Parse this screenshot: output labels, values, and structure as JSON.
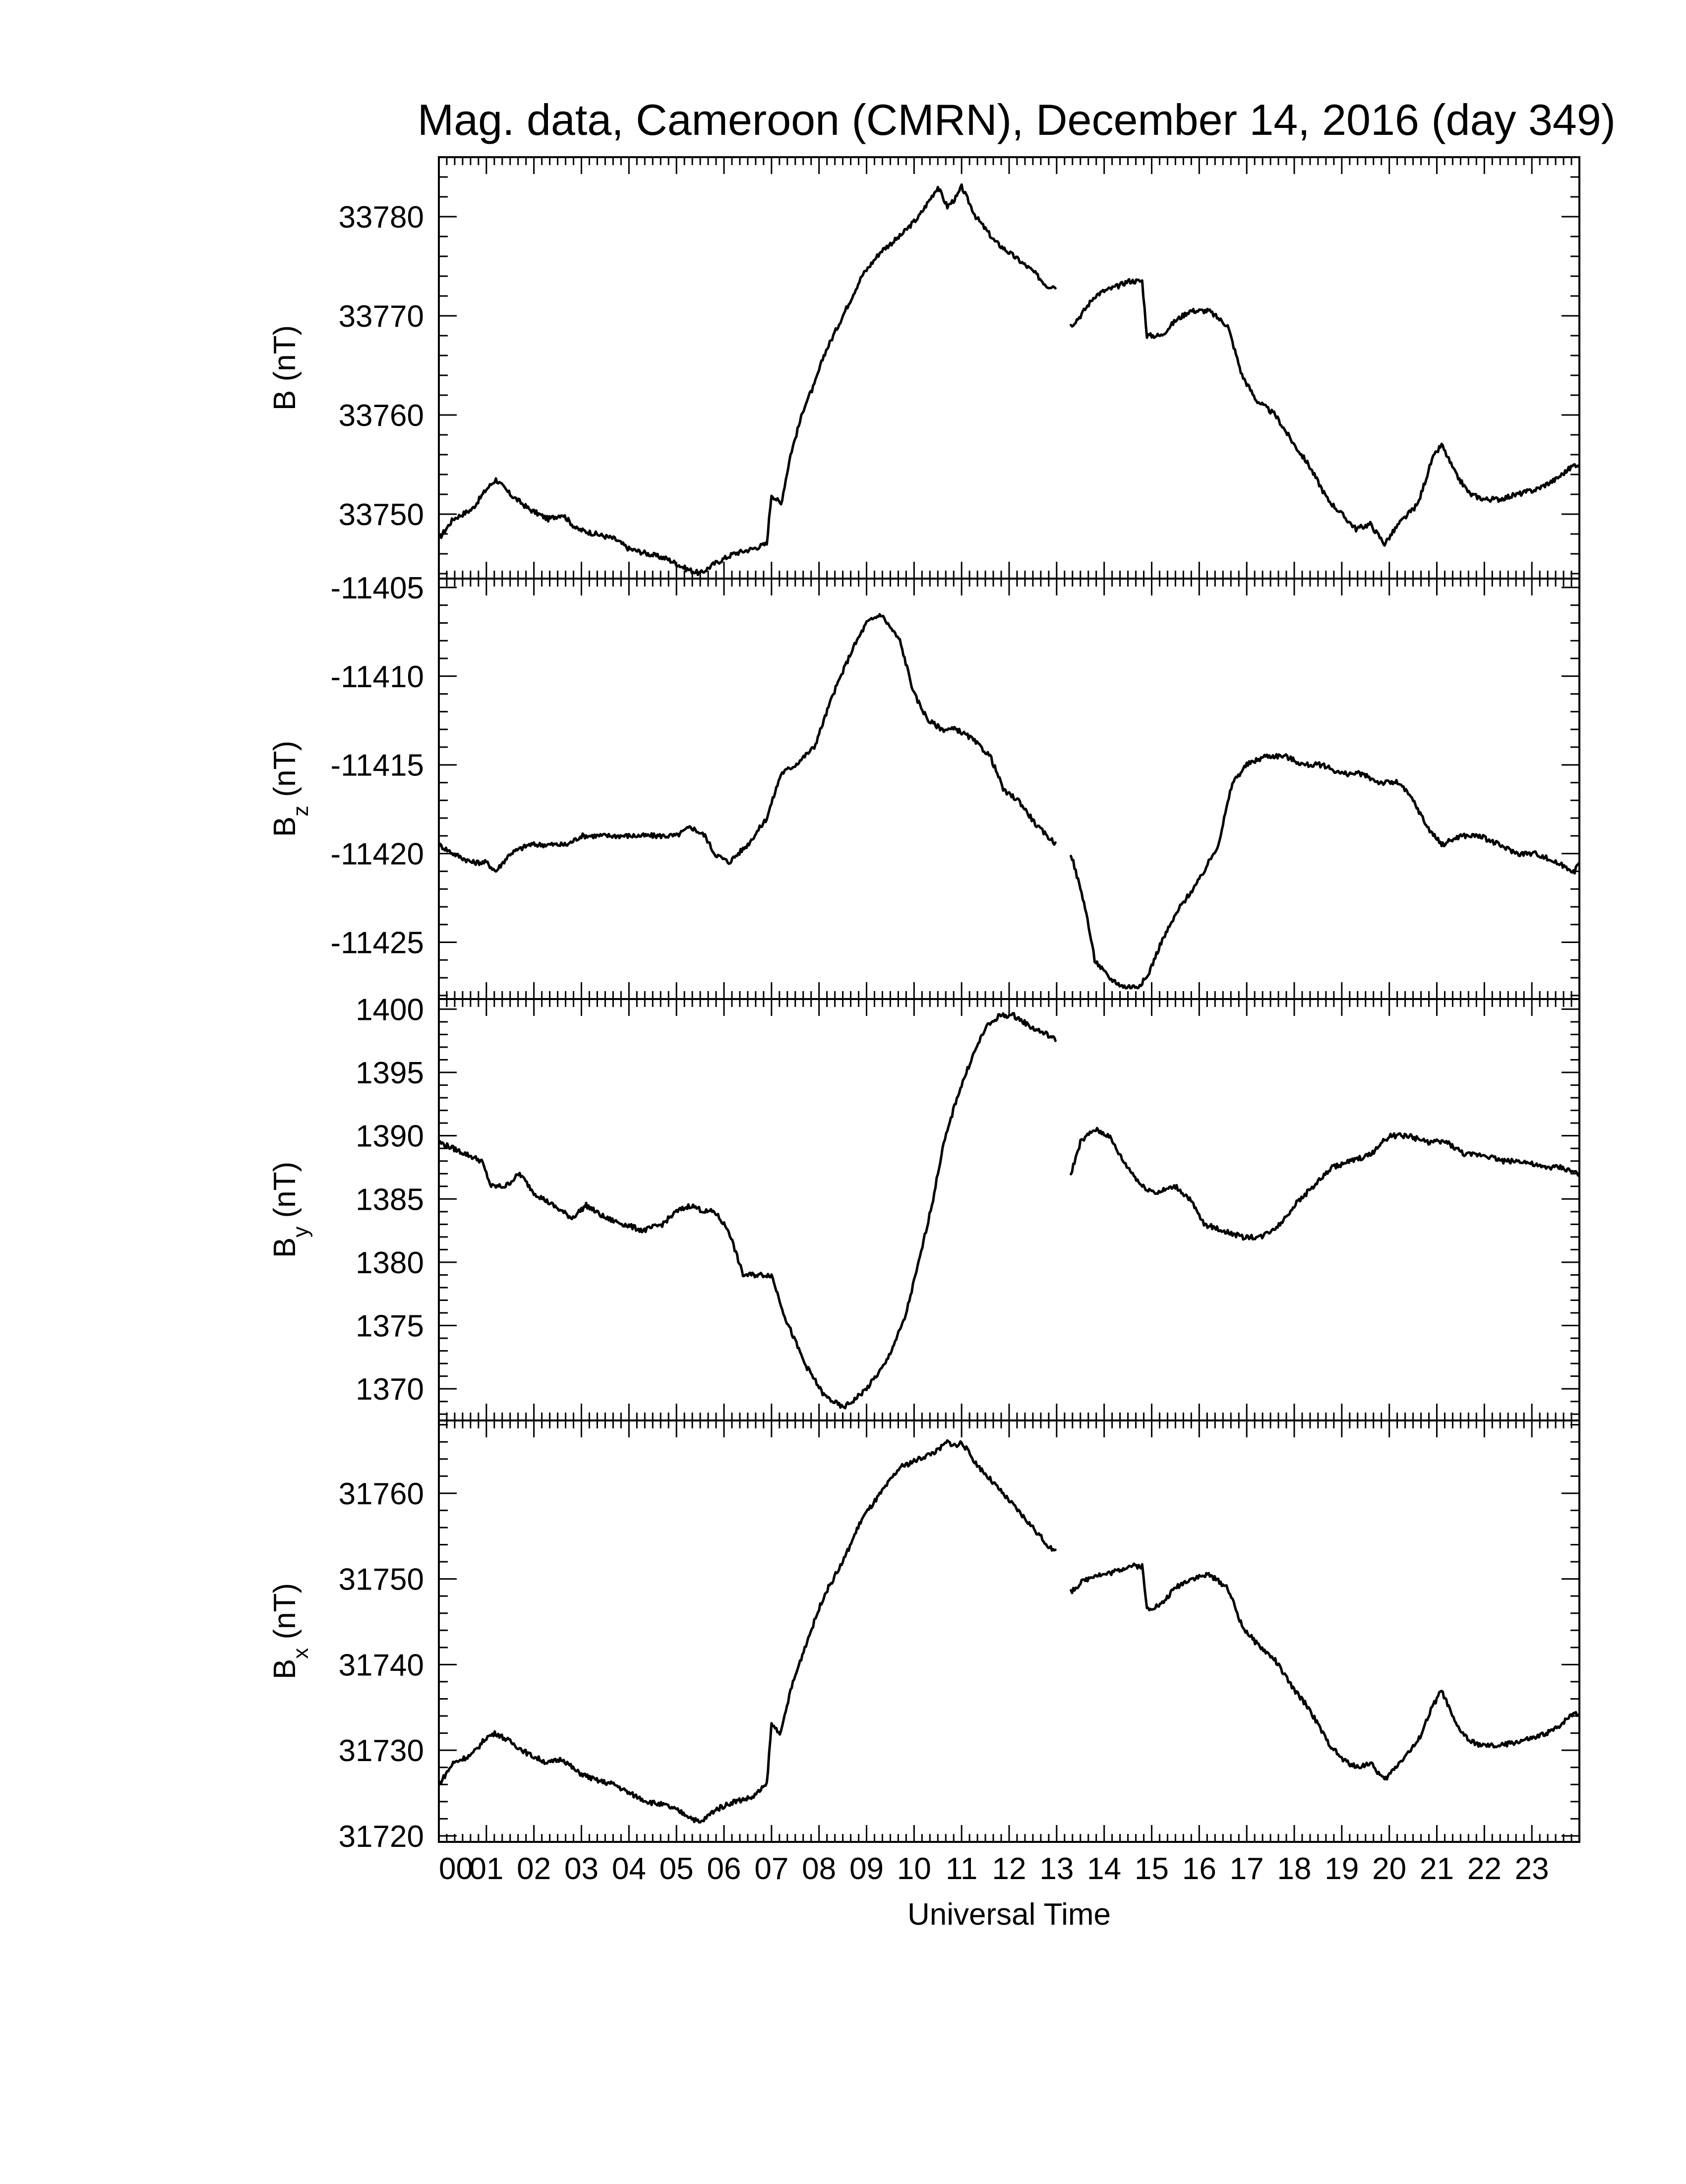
{
  "chart_data": {
    "type": "line",
    "title": "Mag. data, Cameroon (CMRN), December 14, 2016 (day 349)",
    "xlabel": "Universal Time",
    "x_ticks": [
      "00",
      "01",
      "02",
      "03",
      "04",
      "05",
      "06",
      "07",
      "08",
      "09",
      "10",
      "11",
      "12",
      "13",
      "14",
      "15",
      "16",
      "17",
      "18",
      "19",
      "20",
      "21",
      "22",
      "23"
    ],
    "xlim": [
      0,
      24
    ],
    "x_unit": "hours UT",
    "data_gap": [
      13.0,
      13.3
    ],
    "panels": [
      {
        "id": "B",
        "ylabel_main": "B",
        "ylabel_sub": "",
        "ylabel_unit": "(nT)",
        "ylim": [
          33743.5,
          33786
        ],
        "yticks": [
          33750,
          33760,
          33770,
          33780
        ],
        "ytick_labels": [
          "33750",
          "33760",
          "33770",
          "33780"
        ],
        "x": [
          0,
          0.3,
          0.7,
          1.0,
          1.2,
          1.5,
          1.9,
          2.3,
          2.6,
          2.9,
          3.3,
          3.7,
          4.0,
          4.4,
          4.8,
          5.2,
          5.5,
          5.8,
          6.2,
          6.6,
          6.9,
          7.0,
          7.2,
          7.4,
          7.7,
          7.9,
          8.1,
          8.5,
          8.9,
          9.3,
          9.7,
          10.1,
          10.5,
          10.7,
          10.9,
          11.0,
          11.3,
          11.7,
          12.1,
          12.5,
          12.8,
          13.0,
          13.3,
          13.5,
          13.8,
          14.0,
          14.3,
          14.5,
          14.8,
          14.9,
          15.2,
          15.5,
          15.8,
          16.2,
          16.6,
          16.9,
          17.2,
          17.6,
          18.0,
          18.3,
          18.7,
          19.0,
          19.3,
          19.6,
          19.9,
          20.2,
          20.6,
          20.9,
          21.1,
          21.4,
          21.7,
          22.0,
          22.3,
          22.7,
          23.1,
          23.5,
          23.9,
          24.0
        ],
        "y": [
          33747.5,
          33749.5,
          33750.5,
          33752.5,
          33753.5,
          33752,
          33750.5,
          33749.5,
          33750,
          33748.5,
          33748,
          33747.5,
          33746.5,
          33746,
          33745.5,
          33744.5,
          33744,
          33745,
          33746,
          33746.5,
          33747,
          33752,
          33751,
          33756,
          33761,
          33763,
          33766,
          33770,
          33774,
          33776.5,
          33778,
          33780,
          33783,
          33781,
          33782,
          33783,
          33780,
          33777.5,
          33776,
          33774.5,
          33773,
          33773,
          33769,
          33770,
          33772,
          33772.5,
          33773,
          33773.5,
          33773.5,
          33768,
          33768,
          33769.5,
          33770.5,
          33770.5,
          33769,
          33764,
          33761.5,
          33760,
          33757,
          33755,
          33751.5,
          33750,
          33748.5,
          33749,
          33747,
          33749,
          33751,
          33755.5,
          33757,
          33754,
          33752,
          33751.5,
          33751.5,
          33752,
          33752.5,
          33753.5,
          33755,
          33755
        ]
      },
      {
        "id": "Bz",
        "ylabel_main": "B",
        "ylabel_sub": "z",
        "ylabel_unit": "(nT)",
        "ylim": [
          -11428.2,
          -11404.5
        ],
        "yticks": [
          -11425,
          -11420,
          -11415,
          -11410,
          -11405
        ],
        "ytick_labels": [
          "-11425",
          "-11420",
          "-11415",
          "-11410",
          "-11405"
        ],
        "x": [
          0,
          0.3,
          0.7,
          1.0,
          1.2,
          1.5,
          1.9,
          2.3,
          2.7,
          3.0,
          3.4,
          3.8,
          4.2,
          4.6,
          5.0,
          5.3,
          5.6,
          5.8,
          6.1,
          6.5,
          6.9,
          7.2,
          7.5,
          7.9,
          8.3,
          8.7,
          9.0,
          9.3,
          9.7,
          10.0,
          10.3,
          10.6,
          10.9,
          11.2,
          11.6,
          11.9,
          12.2,
          12.6,
          13.0,
          13.3,
          13.6,
          13.8,
          14.1,
          14.4,
          14.7,
          14.9,
          15.2,
          15.6,
          16.0,
          16.4,
          16.7,
          17.0,
          17.4,
          17.8,
          18.2,
          18.6,
          19.0,
          19.4,
          19.8,
          20.2,
          20.5,
          20.8,
          21.1,
          21.5,
          21.9,
          22.3,
          22.7,
          23.1,
          23.5,
          23.9,
          24.0
        ],
        "y": [
          -11419.5,
          -11420,
          -11420.5,
          -11420.5,
          -11421,
          -11420,
          -11419.5,
          -11419.5,
          -11419.5,
          -11419,
          -11419,
          -11419,
          -11419,
          -11419,
          -11419,
          -11418.5,
          -11419,
          -11420,
          -11420.5,
          -11419.5,
          -11418,
          -11415.5,
          -11415,
          -11414,
          -11411,
          -11408.5,
          -11407,
          -11406.5,
          -11408,
          -11411,
          -11412.5,
          -11413,
          -11413,
          -11413.5,
          -11414.5,
          -11416.5,
          -11417,
          -11418.5,
          -11419.5,
          -11420,
          -11423,
          -11426,
          -11427,
          -11427.5,
          -11427.5,
          -11427,
          -11425,
          -11423,
          -11421.5,
          -11419.5,
          -11416,
          -11415,
          -11414.5,
          -11414.5,
          -11415,
          -11415,
          -11415.5,
          -11415.5,
          -11416,
          -11416,
          -11417,
          -11418.5,
          -11419.5,
          -11419,
          -11419,
          -11419.5,
          -11420,
          -11420,
          -11420.5,
          -11421,
          -11420.5
        ]
      },
      {
        "id": "By",
        "ylabel_main": "B",
        "ylabel_sub": "y",
        "ylabel_unit": "(nT)",
        "ylim": [
          1367.5,
          1400.8
        ],
        "yticks": [
          1370,
          1375,
          1380,
          1385,
          1390,
          1395,
          1400
        ],
        "ytick_labels": [
          "1370",
          "1375",
          "1380",
          "1385",
          "1390",
          "1395",
          "1400"
        ],
        "x": [
          0,
          0.3,
          0.6,
          0.9,
          1.1,
          1.4,
          1.7,
          2.0,
          2.4,
          2.8,
          3.1,
          3.5,
          3.9,
          4.3,
          4.7,
          5.0,
          5.3,
          5.6,
          5.8,
          6.1,
          6.4,
          6.8,
          7.0,
          7.3,
          7.7,
          8.1,
          8.5,
          8.7,
          9.0,
          9.4,
          9.8,
          10.1,
          10.4,
          10.6,
          10.9,
          11.2,
          11.5,
          11.8,
          12.1,
          12.5,
          12.8,
          13.0,
          13.3,
          13.5,
          13.8,
          14.1,
          14.4,
          14.8,
          15.1,
          15.5,
          15.8,
          16.1,
          16.5,
          16.9,
          17.3,
          17.7,
          18.0,
          18.4,
          18.8,
          19.2,
          19.6,
          20.0,
          20.4,
          20.8,
          21.2,
          21.6,
          22.0,
          22.4,
          22.8,
          23.2,
          23.6,
          24.0
        ],
        "y": [
          1389.5,
          1389,
          1388.5,
          1388,
          1386,
          1386,
          1387,
          1385.5,
          1384.5,
          1383.5,
          1384.5,
          1383.5,
          1383,
          1382.5,
          1383,
          1384,
          1384.5,
          1384,
          1384,
          1382.5,
          1379,
          1379,
          1379,
          1375.5,
          1372,
          1369.5,
          1368.5,
          1369,
          1370,
          1372,
          1375.5,
          1380,
          1385,
          1389,
          1393,
          1396,
          1398.5,
          1399.5,
          1399.5,
          1398.5,
          1398,
          1397.5,
          1387,
          1389.5,
          1390.5,
          1390,
          1388,
          1386,
          1385.5,
          1386,
          1385,
          1383,
          1382.5,
          1382,
          1382,
          1383,
          1384.5,
          1386,
          1387.5,
          1388,
          1388.5,
          1390,
          1390,
          1389.5,
          1389.5,
          1388.5,
          1388.5,
          1388,
          1388,
          1387.5,
          1387.5,
          1387
        ]
      },
      {
        "id": "Bx",
        "ylabel_main": "B",
        "ylabel_sub": "x",
        "ylabel_unit": "(nT)",
        "ylim": [
          31719.3,
          31768.5
        ],
        "yticks": [
          31720,
          31730,
          31740,
          31750,
          31760
        ],
        "ytick_labels": [
          "31720",
          "31730",
          "31740",
          "31750",
          "31760"
        ],
        "x": [
          0,
          0.3,
          0.7,
          1.0,
          1.2,
          1.5,
          1.9,
          2.3,
          2.6,
          2.9,
          3.3,
          3.7,
          4.0,
          4.4,
          4.8,
          5.2,
          5.5,
          5.8,
          6.2,
          6.6,
          6.9,
          7.0,
          7.2,
          7.4,
          7.7,
          7.9,
          8.1,
          8.5,
          8.9,
          9.3,
          9.7,
          10.1,
          10.5,
          10.7,
          10.9,
          11.0,
          11.3,
          11.7,
          12.1,
          12.5,
          12.8,
          13.0,
          13.3,
          13.5,
          13.8,
          14.0,
          14.3,
          14.5,
          14.8,
          14.9,
          15.2,
          15.5,
          15.8,
          16.2,
          16.6,
          16.9,
          17.2,
          17.6,
          18.0,
          18.3,
          18.7,
          19.0,
          19.3,
          19.6,
          19.9,
          20.2,
          20.6,
          20.9,
          21.1,
          21.4,
          21.7,
          22.0,
          22.3,
          22.7,
          23.1,
          23.5,
          23.9,
          24.0
        ],
        "y": [
          31726,
          31728.5,
          31729.5,
          31731.5,
          31732,
          31731,
          31729.5,
          31728.5,
          31729,
          31727.5,
          31726.5,
          31726,
          31725,
          31724,
          31723.5,
          31722.5,
          31721.5,
          31723,
          31724,
          31724.5,
          31726,
          31733,
          31732,
          31737,
          31742,
          31745,
          31748,
          31752,
          31757,
          31760,
          31763,
          31764,
          31765,
          31766,
          31765.5,
          31766,
          31763.5,
          31761,
          31758.5,
          31756,
          31754,
          31753,
          31748.5,
          31749.5,
          31750.5,
          31750.5,
          31751,
          31751.5,
          31751.5,
          31746.5,
          31747,
          31749,
          31750,
          31750.5,
          31749,
          31744.5,
          31742.5,
          31740.5,
          31737,
          31735,
          31731,
          31729,
          31728,
          31728.5,
          31726.5,
          31728.5,
          31731,
          31735,
          31737,
          31733,
          31731,
          31730.5,
          31730.5,
          31731,
          31731.5,
          31732.5,
          31734.5,
          31734
        ]
      }
    ]
  }
}
